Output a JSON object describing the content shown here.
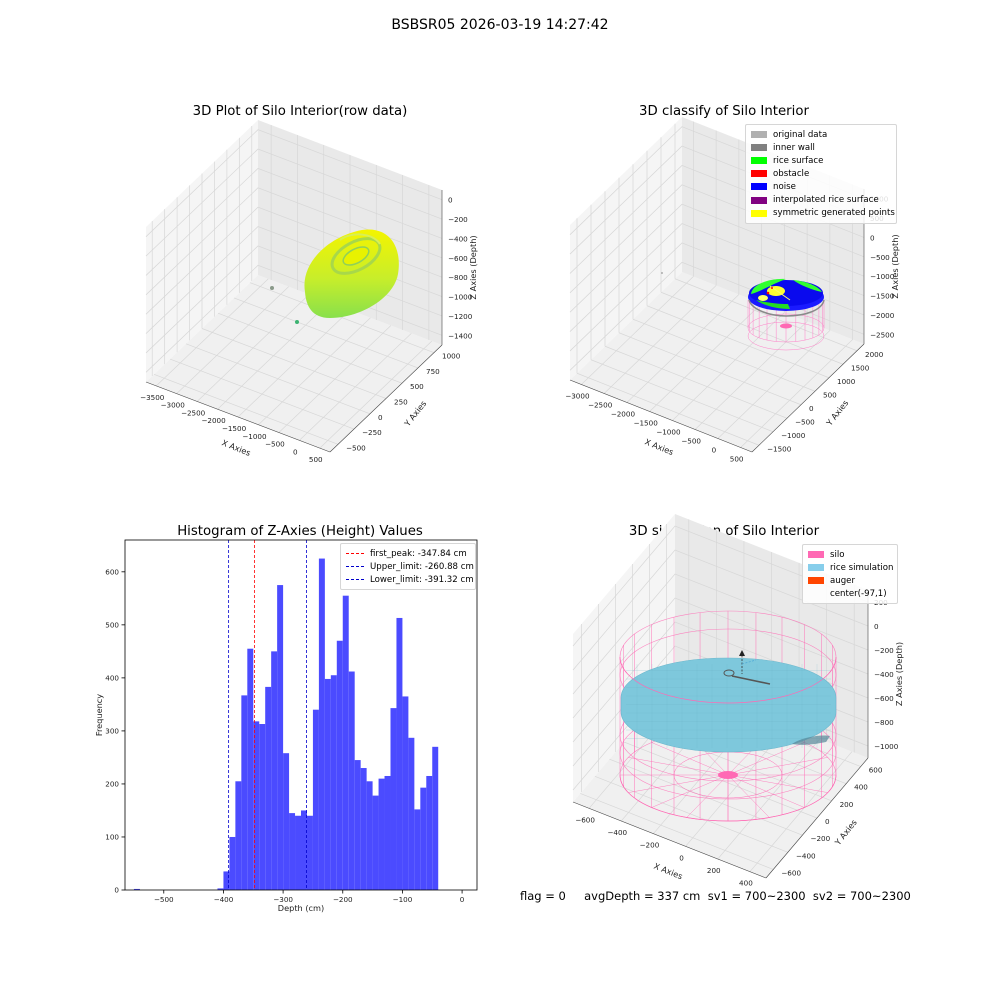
{
  "suptitle": "BSBSR05 2026-03-19 14:27:42",
  "status_text": "flag = 0     avgDepth = 337 cm  sv1 = 700~2300  sv2 = 700~2300",
  "colors": {
    "pane": "#f2f2f2",
    "pane_dark": "#e8e8e8",
    "grid": "#d7d7d7",
    "hist_bar": "#4b4bff",
    "first_peak": "#ff0000",
    "limits": "#0000cc",
    "silo": "#ff69b4",
    "rice_sim": "#7ec8dc",
    "auger": "#ff4500",
    "rice_surface": "#00ff00",
    "noise": "#0000ff",
    "yellow": "#ffff00"
  },
  "chart_data": [
    {
      "type": "scatter",
      "projection": "3d",
      "title": "3D Plot of Silo Interior(row data)",
      "xlabel": "X Axies",
      "ylabel": "Y Axies",
      "zlabel": "Z Axies (Depth)",
      "x_ticks": [
        "−3500",
        "−3000",
        "−2500",
        "−2000",
        "−1500",
        "−1000",
        "−500",
        "0",
        "500"
      ],
      "y_ticks": [
        "−500",
        "−250",
        "0",
        "250",
        "500",
        "750",
        "1000"
      ],
      "z_ticks": [
        "0",
        "−200",
        "−400",
        "−600",
        "−800",
        "−1000",
        "−1200",
        "−1400"
      ],
      "series": [
        {
          "values": [
            [
              -3400,
              0,
              -700
            ],
            [
              -3100,
              -200,
              -1400
            ]
          ]
        }
      ]
    },
    {
      "type": "scatter",
      "projection": "3d",
      "title": "3D classify of Silo Interior",
      "xlabel": "X Axies",
      "ylabel": "Y Axies",
      "zlabel": "Z Axies (Depth)",
      "x_ticks": [
        "−3000",
        "−2500",
        "−2000",
        "−1500",
        "−1000",
        "−500",
        "0",
        "500"
      ],
      "y_ticks": [
        "−1500",
        "−1000",
        "−500",
        "0",
        "500",
        "1000",
        "1500",
        "2000"
      ],
      "z_ticks": [
        "1000",
        "500",
        "0",
        "−500",
        "−1000",
        "−1500",
        "−2000",
        "−2500"
      ],
      "legend": {
        "placement": "upper right",
        "entries": [
          {
            "label": "original data",
            "color": "#b0b0b0"
          },
          {
            "label": "inner wall",
            "color": "#808080"
          },
          {
            "label": "rice surface",
            "color": "#00ff00"
          },
          {
            "label": "obstacle",
            "color": "#ff0000"
          },
          {
            "label": "noise",
            "color": "#0000ff"
          },
          {
            "label": "interpolated rice surface",
            "color": "#800080"
          },
          {
            "label": "symmetric generated points",
            "color": "#ffff00"
          }
        ]
      }
    },
    {
      "type": "bar",
      "title": "Histogram of Z-Axies (Height) Values",
      "xlabel": "Depth (cm)",
      "ylabel": "Frequency",
      "xlim": [
        -565,
        25
      ],
      "ylim": [
        0,
        660
      ],
      "x_ticks": [
        -500,
        -400,
        -300,
        -200,
        -100,
        0
      ],
      "x_tick_labels": [
        "−500",
        "−400",
        "−300",
        "−200",
        "−100",
        "0"
      ],
      "y_ticks": [
        0,
        100,
        200,
        300,
        400,
        500,
        600
      ],
      "bin_width": 10,
      "bins": [
        {
          "x": -545,
          "value": 2
        },
        {
          "x": -405,
          "value": 3
        },
        {
          "x": -395,
          "value": 35
        },
        {
          "x": -385,
          "value": 100
        },
        {
          "x": -375,
          "value": 205
        },
        {
          "x": -365,
          "value": 367
        },
        {
          "x": -355,
          "value": 455
        },
        {
          "x": -345,
          "value": 318
        },
        {
          "x": -335,
          "value": 313
        },
        {
          "x": -325,
          "value": 383
        },
        {
          "x": -315,
          "value": 450
        },
        {
          "x": -305,
          "value": 575
        },
        {
          "x": -295,
          "value": 258
        },
        {
          "x": -285,
          "value": 145
        },
        {
          "x": -275,
          "value": 140
        },
        {
          "x": -265,
          "value": 150
        },
        {
          "x": -255,
          "value": 140
        },
        {
          "x": -245,
          "value": 340
        },
        {
          "x": -235,
          "value": 625
        },
        {
          "x": -225,
          "value": 398
        },
        {
          "x": -215,
          "value": 405
        },
        {
          "x": -205,
          "value": 470
        },
        {
          "x": -195,
          "value": 555
        },
        {
          "x": -185,
          "value": 412
        },
        {
          "x": -175,
          "value": 245
        },
        {
          "x": -165,
          "value": 230
        },
        {
          "x": -155,
          "value": 205
        },
        {
          "x": -145,
          "value": 178
        },
        {
          "x": -135,
          "value": 210
        },
        {
          "x": -125,
          "value": 215
        },
        {
          "x": -115,
          "value": 343
        },
        {
          "x": -105,
          "value": 513
        },
        {
          "x": -95,
          "value": 365
        },
        {
          "x": -85,
          "value": 287
        },
        {
          "x": -75,
          "value": 152
        },
        {
          "x": -65,
          "value": 193
        },
        {
          "x": -55,
          "value": 215
        },
        {
          "x": -45,
          "value": 270
        }
      ],
      "vlines": [
        {
          "label": "first_peak: -347.84 cm",
          "x": -347.84,
          "color": "#ff0000"
        },
        {
          "label": "Upper_limit: -260.88 cm",
          "x": -260.88,
          "color": "#0000cc"
        },
        {
          "label": "Lower_limit: -391.32 cm",
          "x": -391.32,
          "color": "#0000cc"
        }
      ],
      "legend": {
        "placement": "upper right"
      }
    },
    {
      "type": "area",
      "projection": "3d",
      "title": "3D simulation of Silo Interior",
      "xlabel": "X Axies",
      "ylabel": "Y Axies",
      "zlabel": "Z Axies (Depth)",
      "x_ticks": [
        "−600",
        "−400",
        "−200",
        "0",
        "200",
        "400"
      ],
      "y_ticks": [
        "−600",
        "−400",
        "−200",
        "0",
        "200",
        "400",
        "600"
      ],
      "z_ticks": [
        "200",
        "0",
        "−200",
        "−400",
        "−600",
        "−800",
        "−1000"
      ],
      "legend": {
        "placement": "upper right",
        "entries": [
          {
            "label": "silo",
            "color": "#ff69b4"
          },
          {
            "label": "rice simulation",
            "color": "#87ceeb"
          },
          {
            "label": "auger",
            "color": "#ff4500"
          },
          {
            "label": "center(-97,1)",
            "color": ""
          }
        ]
      }
    }
  ]
}
